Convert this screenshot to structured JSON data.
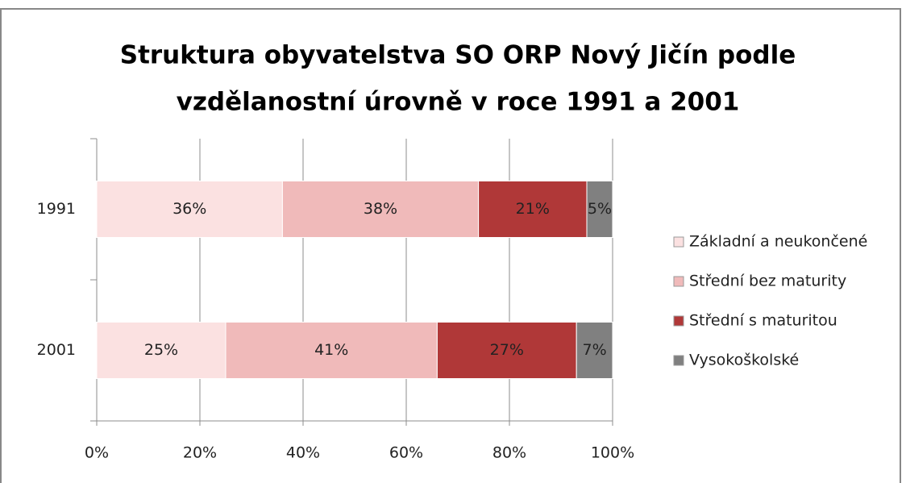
{
  "chart_data": {
    "type": "bar",
    "orientation": "horizontal",
    "stacked": true,
    "title": [
      "Struktura obyvatelstva SO ORP Nový Jičín podle",
      "vzdělanostní úrovně v roce 1991 a 2001"
    ],
    "categories": [
      "1991",
      "2001"
    ],
    "series": [
      {
        "name": "Základní a neukončené",
        "color": "#fbe1e1",
        "values": [
          36,
          25
        ],
        "value_labels": [
          "36%",
          "25%"
        ]
      },
      {
        "name": "Střední bez maturity",
        "color": "#f0baba",
        "values": [
          38,
          41
        ],
        "value_labels": [
          "38%",
          "41%"
        ]
      },
      {
        "name": "Střední s maturitou",
        "color": "#b03838",
        "values": [
          21,
          27
        ],
        "value_labels": [
          "21%",
          "27%"
        ]
      },
      {
        "name": "Vysokoškolské",
        "color": "#808080",
        "values": [
          5,
          7
        ],
        "value_labels": [
          "5%",
          "7%"
        ]
      }
    ],
    "xlim": [
      0,
      100
    ],
    "xticks": [
      {
        "value": 0,
        "label": "0%"
      },
      {
        "value": 20,
        "label": "20%"
      },
      {
        "value": 40,
        "label": "40%"
      },
      {
        "value": 60,
        "label": "60%"
      },
      {
        "value": 80,
        "label": "80%"
      },
      {
        "value": 100,
        "label": "100%"
      }
    ],
    "grid": true,
    "legend": "right"
  }
}
